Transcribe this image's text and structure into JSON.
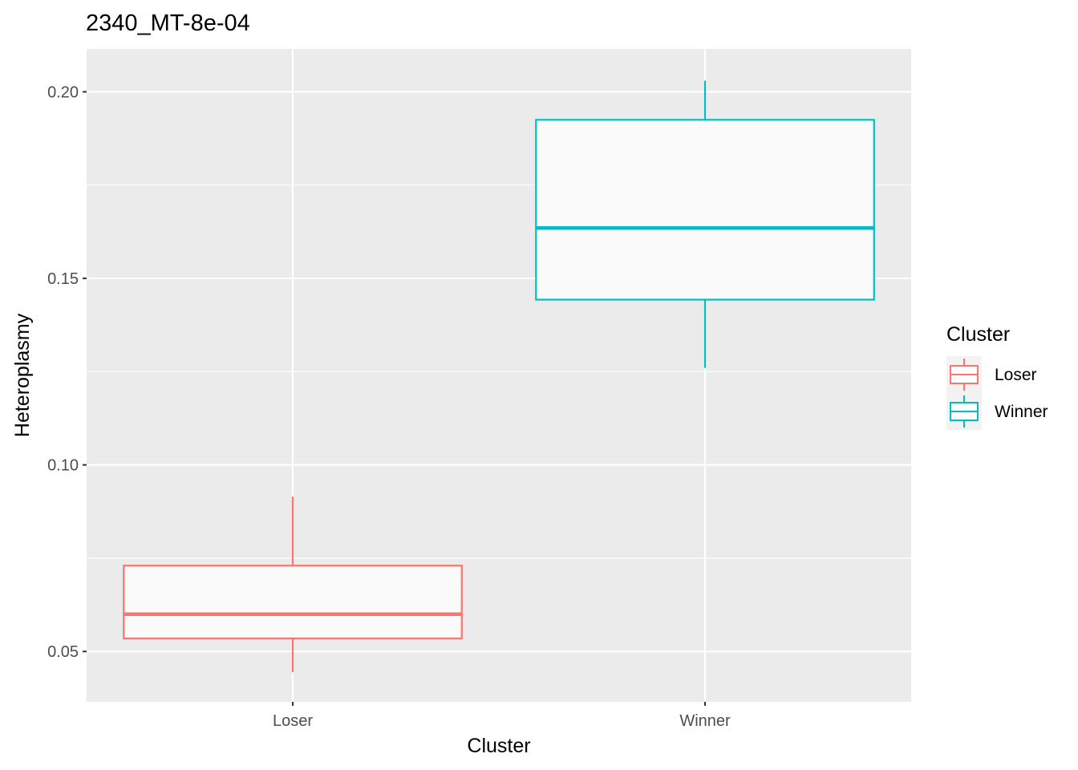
{
  "chart_data": {
    "type": "boxplot",
    "title": "2340_MT-8e-04",
    "xlabel": "Cluster",
    "ylabel": "Heteroplasmy",
    "ylim": [
      0.0365,
      0.2115
    ],
    "yticks": [
      0.05,
      0.1,
      0.15,
      0.2
    ],
    "ytick_labels": [
      "0.05",
      "0.10",
      "0.15",
      "0.20"
    ],
    "grid": true,
    "legend": {
      "title": "Cluster",
      "position": "right"
    },
    "categories": [
      "Loser",
      "Winner"
    ],
    "series": [
      {
        "name": "Loser",
        "color": "#F8766D",
        "whisker_low": 0.0445,
        "q1": 0.0535,
        "median": 0.06,
        "q3": 0.073,
        "whisker_high": 0.0915
      },
      {
        "name": "Winner",
        "color": "#00BFC4",
        "whisker_low": 0.126,
        "q1": 0.1443,
        "median": 0.1635,
        "q3": 0.1925,
        "whisker_high": 0.203
      }
    ]
  }
}
